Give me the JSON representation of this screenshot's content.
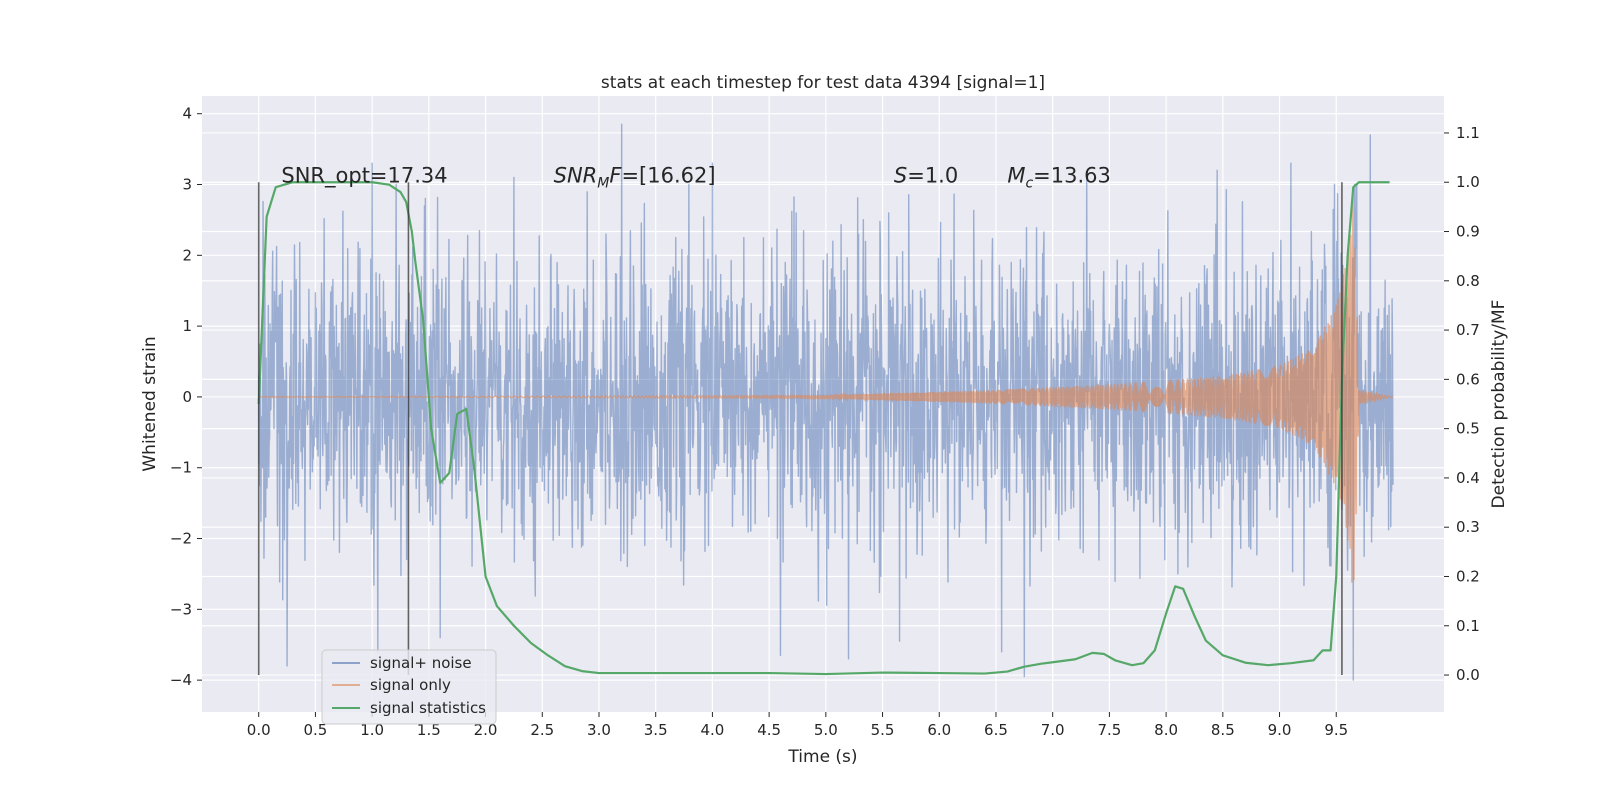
{
  "chart_data": {
    "type": "line",
    "title": "stats at each timestep for test data 4394 [signal=1]",
    "xlabel": "Time (s)",
    "ylabel": "Whitened strain",
    "ylabel_right": "Detection probability/MF",
    "xlim": [
      -0.5,
      10.45
    ],
    "ylim": [
      -4.45,
      4.25
    ],
    "ylim_right": [
      -0.075,
      1.175
    ],
    "x_ticks": [
      0.0,
      0.5,
      1.0,
      1.5,
      2.0,
      2.5,
      3.0,
      3.5,
      4.0,
      4.5,
      5.0,
      5.5,
      6.0,
      6.5,
      7.0,
      7.5,
      8.0,
      8.5,
      9.0,
      9.5
    ],
    "x_tick_labels": [
      "0.0",
      "0.5",
      "1.0",
      "1.5",
      "2.0",
      "2.5",
      "3.0",
      "3.5",
      "4.0",
      "4.5",
      "5.0",
      "5.5",
      "6.0",
      "6.5",
      "7.0",
      "7.5",
      "8.0",
      "8.5",
      "9.0",
      "9.5"
    ],
    "y_ticks": [
      -4,
      -3,
      -2,
      -1,
      0,
      1,
      2,
      3,
      4
    ],
    "y_tick_labels": [
      "−4",
      "−3",
      "−2",
      "−1",
      "0",
      "1",
      "2",
      "3",
      "4"
    ],
    "y_right_ticks": [
      0.0,
      0.1,
      0.2,
      0.3,
      0.4,
      0.5,
      0.6,
      0.7,
      0.8,
      0.9,
      1.0,
      1.1
    ],
    "y_right_tick_labels": [
      "0.0",
      "0.1",
      "0.2",
      "0.3",
      "0.4",
      "0.5",
      "0.6",
      "0.7",
      "0.8",
      "0.9",
      "1.0",
      "1.1"
    ],
    "grid": true,
    "legend_position": "lower-left",
    "annotations": [
      {
        "text": "SNR_opt=17.34",
        "x": 0.2,
        "y": 3.0
      },
      {
        "text": "SNR_MF=[16.62]",
        "x": 2.6,
        "y": 3.0
      },
      {
        "text": "S=1.0",
        "x": 5.6,
        "y": 3.0
      },
      {
        "text": "M_c=13.63",
        "x": 6.6,
        "y": 3.0
      }
    ],
    "vertical_markers": [
      0.0,
      1.32,
      9.55
    ],
    "series": [
      {
        "name": "signal+ noise",
        "color": "#4c72b0",
        "style": "dense noise trace",
        "x_range": [
          0.0,
          10.0
        ],
        "typical_envelope": [
          -2.4,
          2.4
        ],
        "peak_excursions": [
          {
            "x": 0.25,
            "y": -3.8
          },
          {
            "x": 1.0,
            "y": 3.3
          },
          {
            "x": 1.05,
            "y": -3.6
          },
          {
            "x": 1.6,
            "y": -3.4
          },
          {
            "x": 2.25,
            "y": 3.1
          },
          {
            "x": 3.2,
            "y": 3.85
          },
          {
            "x": 4.0,
            "y": 3.3
          },
          {
            "x": 4.6,
            "y": -3.65
          },
          {
            "x": 5.2,
            "y": -3.7
          },
          {
            "x": 5.65,
            "y": -3.45
          },
          {
            "x": 6.55,
            "y": -3.6
          },
          {
            "x": 6.75,
            "y": -3.95
          },
          {
            "x": 7.3,
            "y": 3.15
          },
          {
            "x": 8.45,
            "y": 3.2
          },
          {
            "x": 9.1,
            "y": 3.3
          },
          {
            "x": 9.65,
            "y": -4.0
          },
          {
            "x": 9.8,
            "y": 3.7
          }
        ]
      },
      {
        "name": "signal only",
        "color": "#dd8452",
        "style": "chirp",
        "amplitude_envelope": {
          "x": [
            0.0,
            5.0,
            6.5,
            7.5,
            8.5,
            9.0,
            9.3,
            9.5,
            9.6,
            9.65,
            9.68,
            9.7,
            10.0
          ],
          "y": [
            0.0,
            0.02,
            0.1,
            0.18,
            0.3,
            0.45,
            0.7,
            1.3,
            2.0,
            2.9,
            1.5,
            0.1,
            0.0
          ]
        }
      },
      {
        "name": "signal statistics",
        "color": "#55a868",
        "axis": "right",
        "x": [
          0.0,
          0.07,
          0.15,
          0.3,
          0.5,
          1.0,
          1.15,
          1.25,
          1.3,
          1.35,
          1.38,
          1.45,
          1.52,
          1.6,
          1.68,
          1.75,
          1.83,
          1.9,
          2.0,
          2.1,
          2.25,
          2.4,
          2.55,
          2.7,
          2.85,
          3.0,
          3.5,
          4.0,
          4.5,
          5.0,
          5.5,
          6.0,
          6.4,
          6.6,
          6.75,
          6.9,
          7.0,
          7.2,
          7.35,
          7.45,
          7.55,
          7.7,
          7.8,
          7.9,
          8.0,
          8.08,
          8.15,
          8.25,
          8.35,
          8.5,
          8.7,
          8.9,
          9.1,
          9.3,
          9.38,
          9.45,
          9.5,
          9.55,
          9.6,
          9.65,
          9.7,
          9.8,
          9.9,
          9.97
        ],
        "y": [
          0.55,
          0.93,
          0.99,
          1.0,
          1.0,
          1.0,
          0.995,
          0.98,
          0.96,
          0.9,
          0.84,
          0.72,
          0.5,
          0.39,
          0.41,
          0.53,
          0.54,
          0.42,
          0.2,
          0.14,
          0.1,
          0.065,
          0.04,
          0.018,
          0.008,
          0.004,
          0.004,
          0.004,
          0.004,
          0.002,
          0.005,
          0.004,
          0.003,
          0.007,
          0.017,
          0.023,
          0.026,
          0.032,
          0.045,
          0.043,
          0.03,
          0.02,
          0.024,
          0.05,
          0.125,
          0.18,
          0.175,
          0.12,
          0.07,
          0.04,
          0.025,
          0.02,
          0.024,
          0.03,
          0.05,
          0.05,
          0.2,
          0.6,
          0.85,
          0.99,
          1.0,
          1.0,
          1.0,
          1.0
        ]
      }
    ]
  }
}
